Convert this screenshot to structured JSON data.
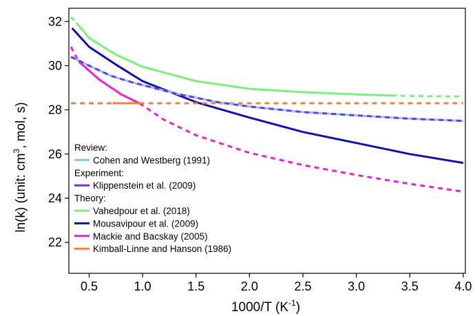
{
  "chart_data": {
    "type": "line",
    "xlabel": "1000/T (K",
    "xlabel_sup": "-1",
    "xlabel_close": ")",
    "ylabel": "ln(k) (unit: cm",
    "ylabel_sup": "3",
    "ylabel_rest": ", mol, s)",
    "xlim": [
      0.31,
      4.02
    ],
    "ylim": [
      20.6,
      32.6
    ],
    "xticks": [
      0.5,
      1.0,
      1.5,
      2.0,
      2.5,
      3.0,
      3.5,
      4.0
    ],
    "xtick_labels": [
      "0.5",
      "1.0",
      "1.5",
      "2.0",
      "2.5",
      "3.0",
      "3.5",
      "4.0"
    ],
    "yticks": [
      22,
      24,
      26,
      28,
      30,
      32
    ],
    "ytick_labels": [
      "22",
      "24",
      "26",
      "28",
      "30",
      "32"
    ],
    "grid": false,
    "legend_position": "lower-left",
    "legend": [
      {
        "header": "Review:"
      },
      {
        "name": "Cohen and Westberg (1991)",
        "color": "#7ecbf5"
      },
      {
        "header": "Experiment:"
      },
      {
        "name": "Klippenstein et al. (2009)",
        "color": "#7b35c8"
      },
      {
        "header": "Theory:"
      },
      {
        "name": "Vahedpour et al. (2018)",
        "color": "#7af07a"
      },
      {
        "name": "Mousavipour et al. (2009)",
        "color": "#1010b0"
      },
      {
        "name": "Mackie and Bacskay (2005)",
        "color": "#f020d0"
      },
      {
        "name": "Kimball-Linne and Hanson (1986)",
        "color": "#f5803a"
      }
    ],
    "series": [
      {
        "name": "Vahedpour et al. (2018)",
        "color": "#7af07a",
        "segments": [
          {
            "style": "solid",
            "x": [
              0.38,
              0.5,
              0.75,
              1.0,
              1.5,
              2.0,
              2.5,
              3.0,
              3.33
            ],
            "y": [
              31.95,
              31.25,
              30.5,
              29.95,
              29.3,
              28.95,
              28.8,
              28.7,
              28.65
            ]
          },
          {
            "style": "dashed",
            "x": [
              0.33,
              0.38
            ],
            "y": [
              32.2,
              31.95
            ]
          },
          {
            "style": "dashed",
            "x": [
              3.33,
              3.5,
              4.0
            ],
            "y": [
              28.65,
              28.63,
              28.6
            ]
          }
        ]
      },
      {
        "name": "Mousavipour et al. (2009)",
        "color": "#1010b0",
        "segments": [
          {
            "style": "solid",
            "x": [
              0.34,
              0.5,
              0.75,
              1.0,
              1.5,
              2.0,
              2.5,
              3.0,
              3.5,
              4.0
            ],
            "y": [
              31.7,
              30.85,
              30.05,
              29.3,
              28.35,
              27.65,
              27.0,
              26.5,
              26.0,
              25.6
            ]
          }
        ]
      },
      {
        "name": "Mackie and Bacskay (2005)",
        "color": "#f020d0",
        "segments": [
          {
            "style": "dashed",
            "x": [
              0.33,
              0.4
            ],
            "y": [
              30.85,
              30.2
            ]
          },
          {
            "style": "solid",
            "x": [
              0.4,
              0.6,
              0.8,
              0.97
            ],
            "y": [
              30.2,
              29.35,
              28.7,
              28.3
            ]
          },
          {
            "style": "dashed",
            "x": [
              0.97,
              1.2,
              1.5,
              2.0,
              2.5,
              3.0,
              3.5,
              4.0
            ],
            "y": [
              28.3,
              27.55,
              26.85,
              26.05,
              25.5,
              25.05,
              24.65,
              24.3
            ]
          }
        ]
      },
      {
        "name": "Kimball-Linne and Hanson (1986)",
        "color": "#f5803a",
        "segments": [
          {
            "style": "dashed",
            "x": [
              0.33,
              0.72
            ],
            "y": [
              28.3,
              28.3
            ]
          },
          {
            "style": "solid",
            "x": [
              0.72,
              0.97
            ],
            "y": [
              28.3,
              28.3
            ]
          },
          {
            "style": "dashed",
            "x": [
              0.97,
              4.0
            ],
            "y": [
              28.3,
              28.3
            ]
          }
        ]
      },
      {
        "name": "Cohen and Westberg (1991)",
        "color": "#7ecbf5",
        "segments": [
          {
            "style": "solid",
            "x": [
              0.33,
              0.5,
              0.7,
              0.9,
              1.1,
              1.3,
              1.5,
              1.7,
              2.0,
              2.5,
              3.0,
              3.5,
              4.0
            ],
            "y": [
              30.4,
              30.0,
              29.55,
              29.25,
              29.0,
              28.75,
              28.55,
              28.35,
              28.15,
              27.9,
              27.75,
              27.6,
              27.5
            ]
          }
        ]
      },
      {
        "name": "Klippenstein et al. (2009)",
        "color": "#7b35c8",
        "segments": [
          {
            "style": "dashed",
            "x": [
              0.33,
              0.5,
              0.7,
              0.9,
              1.1,
              1.3,
              1.5,
              1.7,
              2.0,
              2.5,
              3.0,
              3.5,
              4.0
            ],
            "y": [
              30.4,
              30.0,
              29.55,
              29.25,
              29.0,
              28.75,
              28.55,
              28.35,
              28.15,
              27.9,
              27.75,
              27.6,
              27.5
            ]
          }
        ]
      }
    ]
  }
}
